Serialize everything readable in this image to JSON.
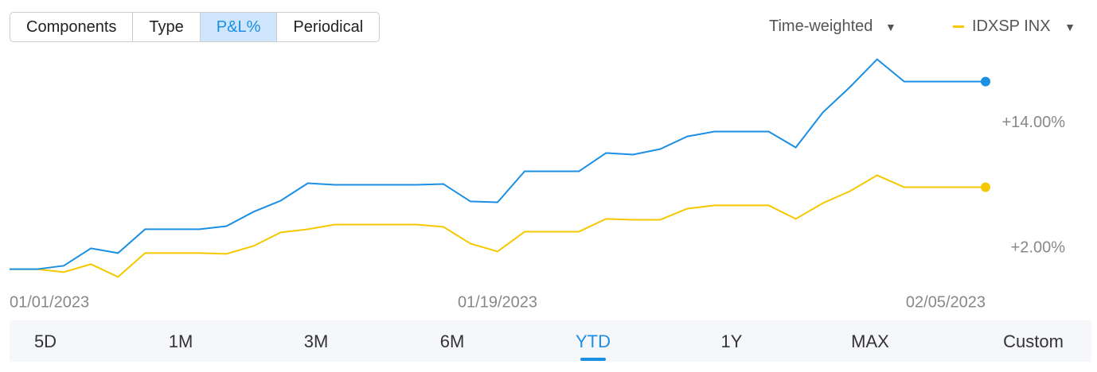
{
  "tabs": [
    "Components",
    "Type",
    "P&L%",
    "Periodical"
  ],
  "selected_tab": "P&L%",
  "method": "Time-weighted",
  "ranges": [
    "5D",
    "1M",
    "3M",
    "6M",
    "YTD",
    "1Y",
    "MAX",
    "Custom"
  ],
  "selected_range": "YTD",
  "chart_data": {
    "type": "line",
    "categories": [
      "01/01/2023",
      null,
      null,
      null,
      null,
      null,
      null,
      null,
      null,
      null,
      null,
      null,
      null,
      null,
      null,
      null,
      null,
      null,
      "01/19/2023",
      null,
      null,
      null,
      null,
      null,
      null,
      null,
      null,
      null,
      null,
      null,
      null,
      null,
      null,
      null,
      null,
      null,
      "02/05/2023"
    ],
    "series": [
      {
        "color": "#1a8fe3",
        "values": [
          0,
          0,
          0.33,
          2.0,
          1.54,
          3.82,
          3.82,
          3.82,
          4.12,
          5.49,
          6.55,
          8.22,
          8.07,
          8.07,
          8.07,
          8.07,
          8.15,
          6.48,
          6.4,
          9.36,
          9.36,
          9.36,
          11.11,
          10.96,
          11.49,
          12.7,
          13.16,
          13.16,
          13.16,
          11.64,
          14.99,
          17.42,
          20.07,
          17.94,
          17.94,
          17.94,
          17.94
        ]
      },
      {
        "name": "IDXSP INX",
        "color": "#f5c800",
        "values": [
          0,
          0,
          -0.28,
          0.48,
          -0.74,
          1.54,
          1.54,
          1.54,
          1.47,
          2.22,
          3.52,
          3.82,
          4.27,
          4.27,
          4.27,
          4.27,
          4.05,
          2.45,
          1.69,
          3.59,
          3.59,
          3.59,
          4.81,
          4.73,
          4.73,
          5.79,
          6.1,
          6.1,
          6.1,
          4.81,
          6.32,
          7.46,
          8.98,
          7.84,
          7.84,
          7.84,
          7.84
        ]
      }
    ],
    "ylim": [
      -2,
      20.8
    ],
    "yticks": [
      {
        "value": 2,
        "label": "+2.00%"
      },
      {
        "value": 14,
        "label": "+14.00%"
      }
    ],
    "grid": false
  }
}
